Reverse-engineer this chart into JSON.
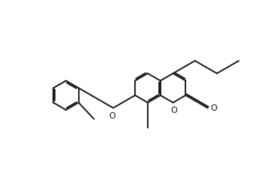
{
  "background_color": "#ffffff",
  "line_color": "#1a1a1a",
  "line_width": 1.5,
  "dbo": 0.055,
  "font_size": 8.5,
  "shorten": 0.07,
  "xlim": [
    -0.5,
    9.5
  ],
  "ylim": [
    -0.3,
    6.5
  ]
}
